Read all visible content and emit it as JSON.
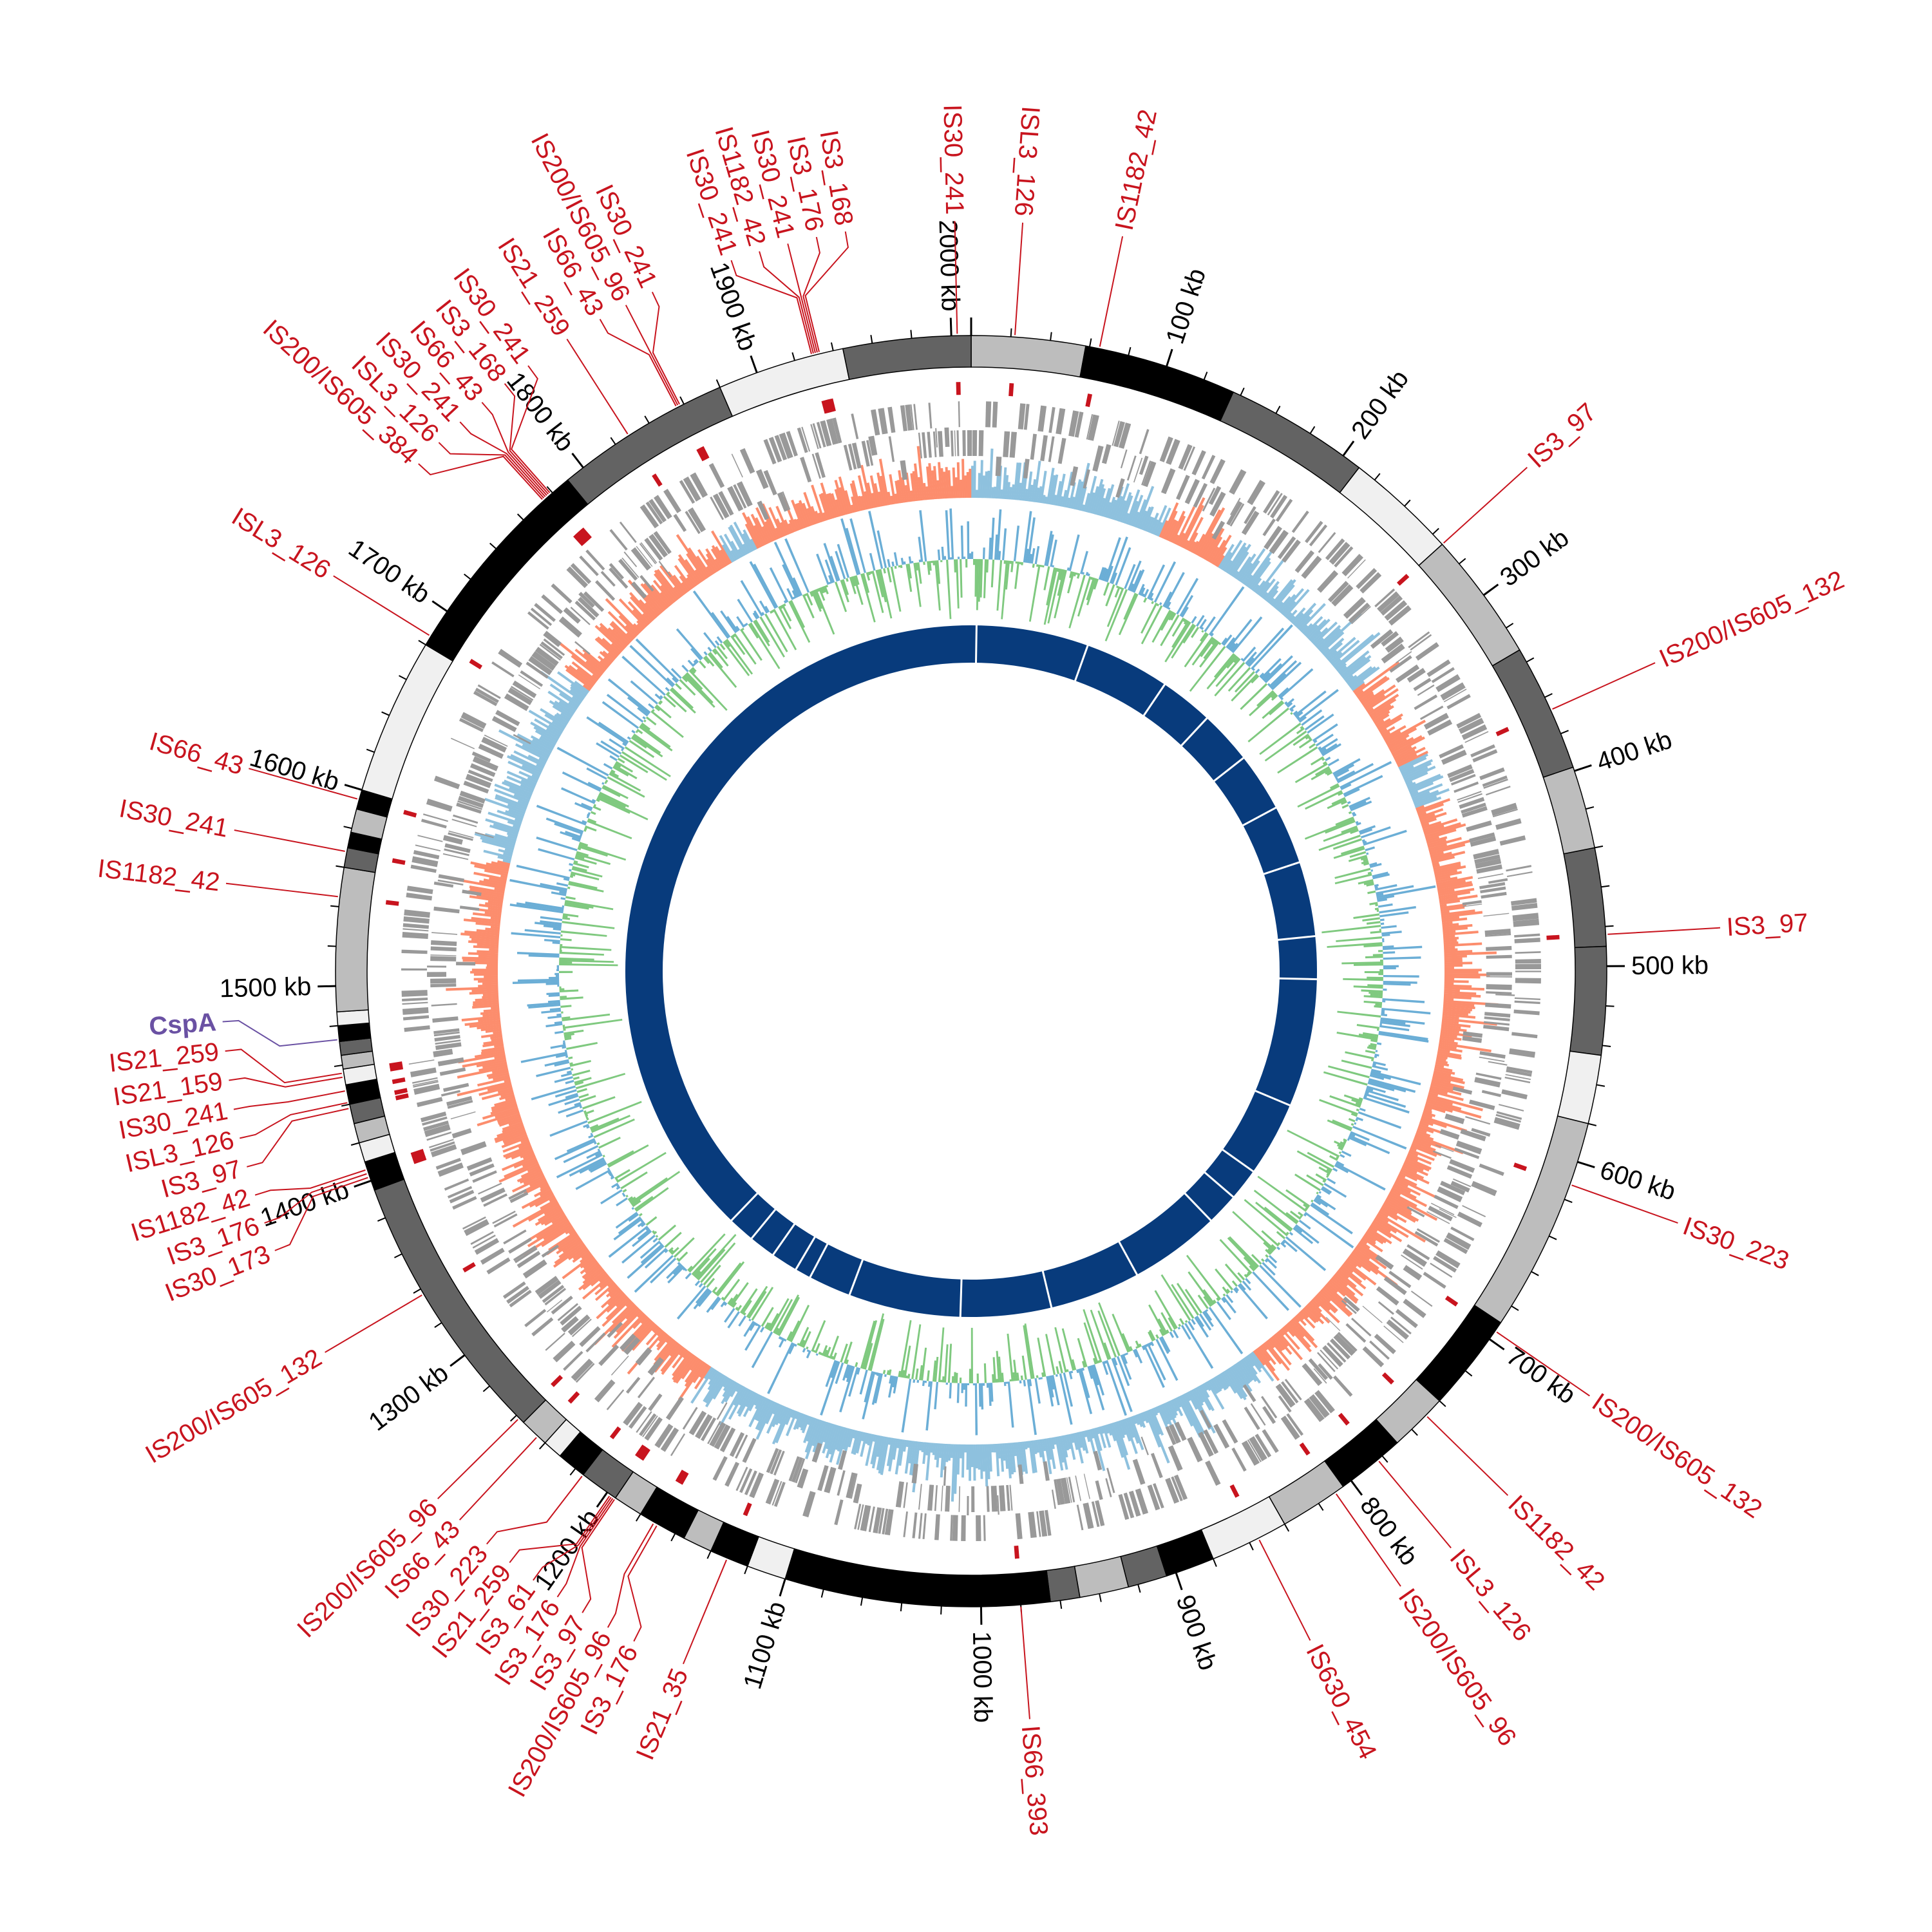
{
  "genome_kb": 2010,
  "colors": {
    "is_label": "#c8141e",
    "gene_label": "#6a51a3",
    "gene_track": "#999999",
    "skew_positive": "#8ec1de",
    "skew_negative": "#fc8d6d",
    "gc_positive": "#7fc97f",
    "gc_negative": "#6baed6",
    "inner_ring": "#083b7c"
  },
  "ticks": [
    {
      "kb": 100,
      "label": "100 kb"
    },
    {
      "kb": 200,
      "label": "200 kb"
    },
    {
      "kb": 300,
      "label": "300 kb"
    },
    {
      "kb": 400,
      "label": "400 kb"
    },
    {
      "kb": 500,
      "label": "500 kb"
    },
    {
      "kb": 600,
      "label": "600 kb"
    },
    {
      "kb": 700,
      "label": "700 kb"
    },
    {
      "kb": 800,
      "label": "800 kb"
    },
    {
      "kb": 900,
      "label": "900 kb"
    },
    {
      "kb": 1000,
      "label": "1000 kb"
    },
    {
      "kb": 1100,
      "label": "1100 kb"
    },
    {
      "kb": 1200,
      "label": "1200 kb"
    },
    {
      "kb": 1300,
      "label": "1300 kb"
    },
    {
      "kb": 1400,
      "label": "1400 kb"
    },
    {
      "kb": 1500,
      "label": "1500 kb"
    },
    {
      "kb": 1600,
      "label": "1600 kb"
    },
    {
      "kb": 1700,
      "label": "1700 kb"
    },
    {
      "kb": 1800,
      "label": "1800 kb"
    },
    {
      "kb": 1900,
      "label": "1900 kb"
    },
    {
      "kb": 2000,
      "label": "2000 kb"
    }
  ],
  "bands": [
    [
      0,
      58,
      "#bdbdbd"
    ],
    [
      58,
      136,
      "#000000"
    ],
    [
      136,
      210,
      "#636363"
    ],
    [
      210,
      267,
      "#f0f0f0"
    ],
    [
      267,
      333,
      "#bdbdbd"
    ],
    [
      333,
      398,
      "#636363"
    ],
    [
      398,
      440,
      "#bdbdbd"
    ],
    [
      440,
      490,
      "#636363"
    ],
    [
      490,
      545,
      "#636363"
    ],
    [
      545,
      580,
      "#f0f0f0"
    ],
    [
      580,
      690,
      "#bdbdbd"
    ],
    [
      690,
      740,
      "#000000"
    ],
    [
      740,
      770,
      "#bdbdbd"
    ],
    [
      770,
      805,
      "#000000"
    ],
    [
      805,
      840,
      "#bdbdbd"
    ],
    [
      840,
      880,
      "#f0f0f0"
    ],
    [
      880,
      905,
      "#000000"
    ],
    [
      905,
      925,
      "#636363"
    ],
    [
      925,
      950,
      "#bdbdbd"
    ],
    [
      950,
      965,
      "#636363"
    ],
    [
      965,
      1100,
      "#000000"
    ],
    [
      1100,
      1120,
      "#f0f0f0"
    ],
    [
      1120,
      1140,
      "#000000"
    ],
    [
      1140,
      1155,
      "#bdbdbd"
    ],
    [
      1155,
      1180,
      "#000000"
    ],
    [
      1180,
      1195,
      "#bdbdbd"
    ],
    [
      1195,
      1215,
      "#636363"
    ],
    [
      1215,
      1230,
      "#000000"
    ],
    [
      1230,
      1240,
      "#f0f0f0"
    ],
    [
      1240,
      1255,
      "#bdbdbd"
    ],
    [
      1255,
      1395,
      "#636363"
    ],
    [
      1395,
      1410,
      "#000000"
    ],
    [
      1410,
      1420,
      "#f0f0f0"
    ],
    [
      1420,
      1430,
      "#bdbdbd"
    ],
    [
      1430,
      1440,
      "#636363"
    ],
    [
      1440,
      1450,
      "#000000"
    ],
    [
      1450,
      1458,
      "#f0f0f0"
    ],
    [
      1458,
      1465,
      "#bdbdbd"
    ],
    [
      1465,
      1472,
      "#636363"
    ],
    [
      1472,
      1480,
      "#000000"
    ],
    [
      1480,
      1487,
      "#f0f0f0"
    ],
    [
      1487,
      1560,
      "#bdbdbd"
    ],
    [
      1560,
      1570,
      "#636363"
    ],
    [
      1570,
      1578,
      "#000000"
    ],
    [
      1578,
      1590,
      "#bdbdbd"
    ],
    [
      1590,
      1600,
      "#000000"
    ],
    [
      1600,
      1680,
      "#f0f0f0"
    ],
    [
      1680,
      1790,
      "#000000"
    ],
    [
      1790,
      1880,
      "#636363"
    ],
    [
      1880,
      1945,
      "#f0f0f0"
    ],
    [
      1945,
      2010,
      "#636363"
    ]
  ],
  "skew_positive_ranges": [
    [
      0,
      130
    ],
    [
      175,
      300
    ],
    [
      360,
      390
    ],
    [
      800,
      1000
    ],
    [
      1000,
      1190
    ],
    [
      1580,
      1710
    ],
    [
      1840,
      1860
    ]
  ],
  "inner_ring_dividers_kb": [
    5,
    110,
    190,
    240,
    290,
    345,
    400,
    470,
    510,
    630,
    700,
    730,
    760,
    845,
    930,
    1015,
    1120,
    1160,
    1175,
    1200,
    1225,
    1250
  ],
  "elements": [
    {
      "kb": 22,
      "label": "ISL3_126",
      "type": "is"
    },
    {
      "kb": 65,
      "label": "IS1182_42",
      "type": "is"
    },
    {
      "kb": 267,
      "label": "IS3_97",
      "type": "is"
    },
    {
      "kb": 367,
      "label": "IS200/IS605_132",
      "type": "is"
    },
    {
      "kb": 484,
      "label": "IS3_97",
      "type": "is"
    },
    {
      "kb": 612,
      "label": "IS30_223",
      "type": "is"
    },
    {
      "kb": 695,
      "label": "IS200/IS605_132",
      "type": "is"
    },
    {
      "kb": 750,
      "label": "IS1182_42",
      "type": "is"
    },
    {
      "kb": 783,
      "label": "ISL3_126",
      "type": "is"
    },
    {
      "kb": 810,
      "label": "IS200/IS605_96",
      "type": "is"
    },
    {
      "kb": 855,
      "label": "IS630_454",
      "type": "is"
    },
    {
      "kb": 980,
      "label": "IS66_393",
      "type": "is"
    },
    {
      "kb": 1131,
      "label": "IS21_35",
      "type": "is"
    },
    {
      "kb": 1170,
      "label": "IS3_176",
      "type": "is"
    },
    {
      "kb": 1172,
      "label": "IS200/IS605_96",
      "type": "is"
    },
    {
      "kb": 1195,
      "label": "IS3_97",
      "type": "is"
    },
    {
      "kb": 1196,
      "label": "IS3_176",
      "type": "is"
    },
    {
      "kb": 1197,
      "label": "IS3_61",
      "type": "is"
    },
    {
      "kb": 1198,
      "label": "IS21_259",
      "type": "is"
    },
    {
      "kb": 1215,
      "label": "IS30_223",
      "type": "is"
    },
    {
      "kb": 1245,
      "label": "IS66_43",
      "type": "is"
    },
    {
      "kb": 1258,
      "label": "IS200/IS605_96",
      "type": "is"
    },
    {
      "kb": 1337,
      "label": "IS200/IS605_132",
      "type": "is"
    },
    {
      "kb": 1402,
      "label": "IS30_173",
      "type": "is"
    },
    {
      "kb": 1404,
      "label": "IS3_176",
      "type": "is"
    },
    {
      "kb": 1406,
      "label": "IS1182_42",
      "type": "is"
    },
    {
      "kb": 1438,
      "label": "IS3_97",
      "type": "is"
    },
    {
      "kb": 1441,
      "label": "ISL3_126",
      "type": "is"
    },
    {
      "kb": 1447,
      "label": "IS30_241",
      "type": "is"
    },
    {
      "kb": 1454,
      "label": "IS21_159",
      "type": "is"
    },
    {
      "kb": 1456,
      "label": "IS21_259",
      "type": "is"
    },
    {
      "kb": 1473,
      "label": "CspA",
      "type": "gene"
    },
    {
      "kb": 1545,
      "label": "IS1182_42",
      "type": "is"
    },
    {
      "kb": 1568,
      "label": "IS30_241",
      "type": "is"
    },
    {
      "kb": 1595,
      "label": "IS66_43",
      "type": "is"
    },
    {
      "kb": 1685,
      "label": "ISL3_126",
      "type": "is"
    },
    {
      "kb": 1774,
      "label": "IS200/IS605_384",
      "type": "is"
    },
    {
      "kb": 1775,
      "label": "ISL3_126",
      "type": "is"
    },
    {
      "kb": 1776,
      "label": "IS30_241",
      "type": "is"
    },
    {
      "kb": 1777,
      "label": "IS66_43",
      "type": "is"
    },
    {
      "kb": 1778,
      "label": "IS3_168",
      "type": "is"
    },
    {
      "kb": 1779,
      "label": "IS30_241",
      "type": "is"
    },
    {
      "kb": 1828,
      "label": "IS21_259",
      "type": "is"
    },
    {
      "kb": 1856,
      "label": "IS66_43",
      "type": "is"
    },
    {
      "kb": 1857,
      "label": "IS200/IS605_96",
      "type": "is"
    },
    {
      "kb": 1858,
      "label": "IS30_241",
      "type": "is"
    },
    {
      "kb": 1929,
      "label": "IS30_241",
      "type": "is"
    },
    {
      "kb": 1930,
      "label": "IS1182_42",
      "type": "is"
    },
    {
      "kb": 1931,
      "label": "IS30_241",
      "type": "is"
    },
    {
      "kb": 1932,
      "label": "IS3_176",
      "type": "is"
    },
    {
      "kb": 1933,
      "label": "IS3_168",
      "type": "is"
    },
    {
      "kb": 2003,
      "label": "IS30_241",
      "type": "is"
    }
  ]
}
